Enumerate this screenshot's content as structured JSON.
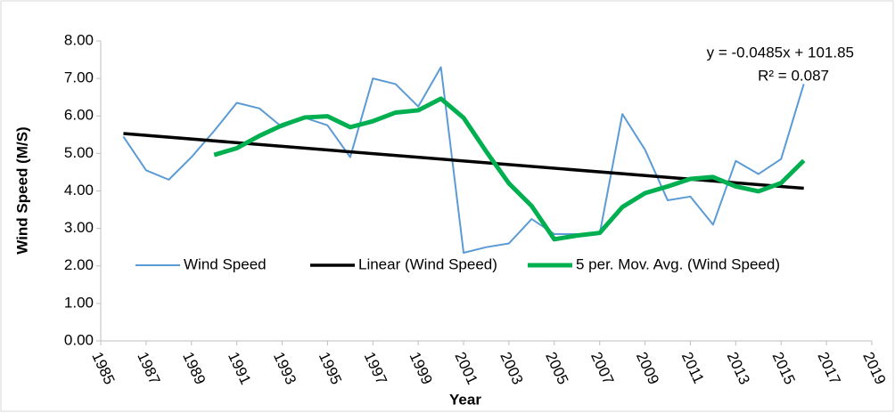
{
  "chart_data": {
    "type": "line",
    "x_label": "Year",
    "y_label": "Wind Speed (M/S)",
    "x": [
      1986,
      1987,
      1988,
      1989,
      1990,
      1991,
      1992,
      1993,
      1994,
      1995,
      1996,
      1997,
      1998,
      1999,
      2000,
      2001,
      2002,
      2003,
      2004,
      2005,
      2006,
      2007,
      2008,
      2009,
      2010,
      2011,
      2012,
      2013,
      2014,
      2015,
      2016
    ],
    "series": [
      {
        "name": "Wind Speed",
        "color": "#5b9bd5",
        "width": 2,
        "values": [
          5.45,
          4.55,
          4.3,
          4.9,
          5.6,
          6.35,
          6.2,
          5.7,
          5.95,
          5.75,
          4.9,
          7.0,
          6.85,
          6.25,
          7.3,
          2.35,
          2.5,
          2.6,
          3.25,
          2.85,
          2.85,
          2.85,
          6.05,
          5.1,
          3.75,
          3.85,
          3.1,
          4.8,
          4.45,
          4.85,
          6.85
        ]
      },
      {
        "name": "Linear (Wind Speed)",
        "color": "#000000",
        "width": 3.5,
        "x": [
          1986,
          2016
        ],
        "values": [
          5.53,
          4.07
        ]
      },
      {
        "name": "5 per. Mov. Avg. (Wind Speed)",
        "color": "#00b050",
        "width": 5,
        "values": [
          null,
          null,
          null,
          null,
          4.96,
          5.14,
          5.47,
          5.75,
          5.96,
          5.99,
          5.7,
          5.86,
          6.09,
          6.15,
          6.46,
          5.95,
          5.05,
          4.2,
          3.6,
          2.71,
          2.81,
          2.88,
          3.57,
          3.94,
          4.12,
          4.32,
          4.37,
          4.12,
          3.99,
          4.21,
          4.81
        ]
      }
    ],
    "annotations": [
      "y = -0.0485x + 101.85",
      "R² = 0.087"
    ],
    "xlim": [
      1985,
      2019
    ],
    "xticks": [
      1985,
      1987,
      1989,
      1991,
      1993,
      1995,
      1997,
      1999,
      2001,
      2003,
      2005,
      2007,
      2009,
      2011,
      2013,
      2015,
      2017,
      2019
    ],
    "ylim": [
      0,
      8
    ],
    "yticks": [
      {
        "value": 0,
        "label": "0.00"
      },
      {
        "value": 1,
        "label": "1.00"
      },
      {
        "value": 2,
        "label": "2.00"
      },
      {
        "value": 3,
        "label": "3.00"
      },
      {
        "value": 4,
        "label": "4.00"
      },
      {
        "value": 5,
        "label": "5.00"
      },
      {
        "value": 6,
        "label": "6.00"
      },
      {
        "value": 7,
        "label": "7.00"
      },
      {
        "value": 8,
        "label": "8.00"
      }
    ],
    "legend": "inside-bottom"
  }
}
